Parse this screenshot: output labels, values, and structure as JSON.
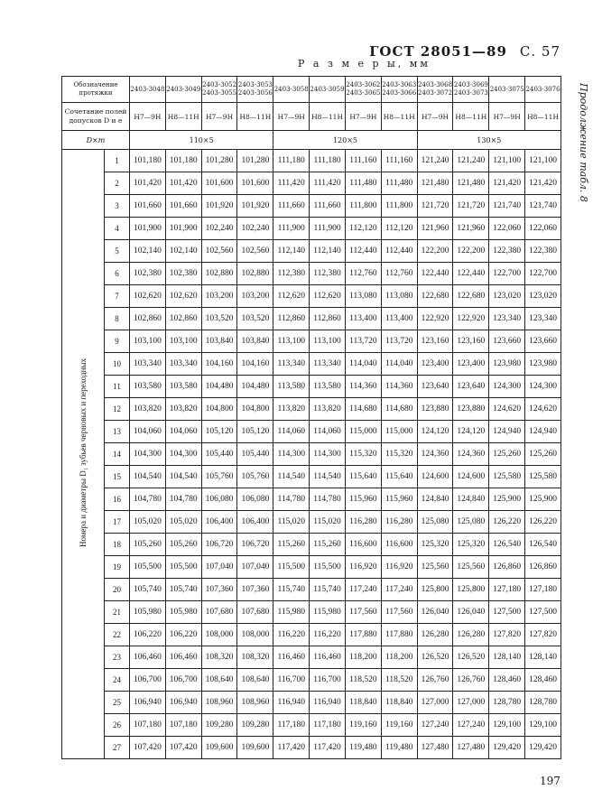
{
  "header": {
    "standard": "ГОСТ 28051—89",
    "page_ref": "С. 57",
    "continuation": "Продолжение табл. 8",
    "dimensions": "Р а з м е р ы, мм"
  },
  "page_number": "197",
  "table": {
    "designation_label": "Обозначение протяжки",
    "tolerance_label": "Сочетание полей допусков D и e",
    "dxm_label": "D×m",
    "side_label": "Номера и диаметры D₁ зубьев черновых и переходных",
    "groups": [
      "110×5",
      "120×5",
      "130×5"
    ],
    "columns": [
      {
        "designation": "2403-3048",
        "tolerance": "H7—9H"
      },
      {
        "designation": "2403-3049",
        "tolerance": "H8—11H"
      },
      {
        "designation": "2403-3052 2403-3055",
        "tolerance": "H7—9H"
      },
      {
        "designation": "2403-3053 2403-3056",
        "tolerance": "H8—11H"
      },
      {
        "designation": "2403-3058",
        "tolerance": "H7—9H"
      },
      {
        "designation": "2403-3059",
        "tolerance": "H8—11H"
      },
      {
        "designation": "2403-3062 2403-3065",
        "tolerance": "H7—9H"
      },
      {
        "designation": "2403-3063 2403-3066",
        "tolerance": "H8—11H"
      },
      {
        "designation": "2403-3068 2403-3072",
        "tolerance": "H7—9H"
      },
      {
        "designation": "2403-3069 2403-3073",
        "tolerance": "H8—11H"
      },
      {
        "designation": "2403-3075",
        "tolerance": "H7—9H"
      },
      {
        "designation": "2403-3076",
        "tolerance": "H8—11H"
      }
    ],
    "rows": [
      [
        "1",
        "101,180",
        "101,180",
        "101,280",
        "101,280",
        "111,180",
        "111,180",
        "111,160",
        "111,160",
        "121,240",
        "121,240",
        "121,100",
        "121,100"
      ],
      [
        "2",
        "101,420",
        "101,420",
        "101,600",
        "101,600",
        "111,420",
        "111,420",
        "111,480",
        "111,480",
        "121,480",
        "121,480",
        "121,420",
        "121,420"
      ],
      [
        "3",
        "101,660",
        "101,660",
        "101,920",
        "101,920",
        "111,660",
        "111,660",
        "111,800",
        "111,800",
        "121,720",
        "121,720",
        "121,740",
        "121,740"
      ],
      [
        "4",
        "101,900",
        "101,900",
        "102,240",
        "102,240",
        "111,900",
        "111,900",
        "112,120",
        "112,120",
        "121,960",
        "121,960",
        "122,060",
        "122,060"
      ],
      [
        "5",
        "102,140",
        "102,140",
        "102,560",
        "102,560",
        "112,140",
        "112,140",
        "112,440",
        "112,440",
        "122,200",
        "122,200",
        "122,380",
        "122,380"
      ],
      [
        "6",
        "102,380",
        "102,380",
        "102,880",
        "102,880",
        "112,380",
        "112,380",
        "112,760",
        "112,760",
        "122,440",
        "122,440",
        "122,700",
        "122,700"
      ],
      [
        "7",
        "102,620",
        "102,620",
        "103,200",
        "103,200",
        "112,620",
        "112,620",
        "113,080",
        "113,080",
        "122,680",
        "122,680",
        "123,020",
        "123,020"
      ],
      [
        "8",
        "102,860",
        "102,860",
        "103,520",
        "103,520",
        "112,860",
        "112,860",
        "113,400",
        "113,400",
        "122,920",
        "122,920",
        "123,340",
        "123,340"
      ],
      [
        "9",
        "103,100",
        "103,100",
        "103,840",
        "103,840",
        "113,100",
        "113,100",
        "113,720",
        "113,720",
        "123,160",
        "123,160",
        "123,660",
        "123,660"
      ],
      [
        "10",
        "103,340",
        "103,340",
        "104,160",
        "104,160",
        "113,340",
        "113,340",
        "114,040",
        "114,040",
        "123,400",
        "123,400",
        "123,980",
        "123,980"
      ],
      [
        "11",
        "103,580",
        "103,580",
        "104,480",
        "104,480",
        "113,580",
        "113,580",
        "114,360",
        "114,360",
        "123,640",
        "123,640",
        "124,300",
        "124,300"
      ],
      [
        "12",
        "103,820",
        "103,820",
        "104,800",
        "104,800",
        "113,820",
        "113,820",
        "114,680",
        "114,680",
        "123,880",
        "123,880",
        "124,620",
        "124,620"
      ],
      [
        "13",
        "104,060",
        "104,060",
        "105,120",
        "105,120",
        "114,060",
        "114,060",
        "115,000",
        "115,000",
        "124,120",
        "124,120",
        "124,940",
        "124,940"
      ],
      [
        "14",
        "104,300",
        "104,300",
        "105,440",
        "105,440",
        "114,300",
        "114,300",
        "115,320",
        "115,320",
        "124,360",
        "124,360",
        "125,260",
        "125,260"
      ],
      [
        "15",
        "104,540",
        "104,540",
        "105,760",
        "105,760",
        "114,540",
        "114,540",
        "115,640",
        "115,640",
        "124,600",
        "124,600",
        "125,580",
        "125,580"
      ],
      [
        "16",
        "104,780",
        "104,780",
        "106,080",
        "106,080",
        "114,780",
        "114,780",
        "115,960",
        "115,960",
        "124,840",
        "124,840",
        "125,900",
        "125,900"
      ],
      [
        "17",
        "105,020",
        "105,020",
        "106,400",
        "106,400",
        "115,020",
        "115,020",
        "116,280",
        "116,280",
        "125,080",
        "125,080",
        "126,220",
        "126,220"
      ],
      [
        "18",
        "105,260",
        "105,260",
        "106,720",
        "106,720",
        "115,260",
        "115,260",
        "116,600",
        "116,600",
        "125,320",
        "125,320",
        "126,540",
        "126,540"
      ],
      [
        "19",
        "105,500",
        "105,500",
        "107,040",
        "107,040",
        "115,500",
        "115,500",
        "116,920",
        "116,920",
        "125,560",
        "125,560",
        "126,860",
        "126,860"
      ],
      [
        "20",
        "105,740",
        "105,740",
        "107,360",
        "107,360",
        "115,740",
        "115,740",
        "117,240",
        "117,240",
        "125,800",
        "125,800",
        "127,180",
        "127,180"
      ],
      [
        "21",
        "105,980",
        "105,980",
        "107,680",
        "107,680",
        "115,980",
        "115,980",
        "117,560",
        "117,560",
        "126,040",
        "126,040",
        "127,500",
        "127,500"
      ],
      [
        "22",
        "106,220",
        "106,220",
        "108,000",
        "108,000",
        "116,220",
        "116,220",
        "117,880",
        "117,880",
        "126,280",
        "126,280",
        "127,820",
        "127,820"
      ],
      [
        "23",
        "106,460",
        "106,460",
        "108,320",
        "108,320",
        "116,460",
        "116,460",
        "118,200",
        "118,200",
        "126,520",
        "126,520",
        "128,140",
        "128,140"
      ],
      [
        "24",
        "106,700",
        "106,700",
        "108,640",
        "108,640",
        "116,700",
        "116,700",
        "118,520",
        "118,520",
        "126,760",
        "126,760",
        "128,460",
        "128,460"
      ],
      [
        "25",
        "106,940",
        "106,940",
        "108,960",
        "108,960",
        "116,940",
        "116,940",
        "118,840",
        "118,840",
        "127,000",
        "127,000",
        "128,780",
        "128,780"
      ],
      [
        "26",
        "107,180",
        "107,180",
        "109,280",
        "109,280",
        "117,180",
        "117,180",
        "119,160",
        "119,160",
        "127,240",
        "127,240",
        "129,100",
        "129,100"
      ],
      [
        "27",
        "107,420",
        "107,420",
        "109,600",
        "109,600",
        "117,420",
        "117,420",
        "119,480",
        "119,480",
        "127,480",
        "127,480",
        "129,420",
        "129,420"
      ]
    ]
  }
}
